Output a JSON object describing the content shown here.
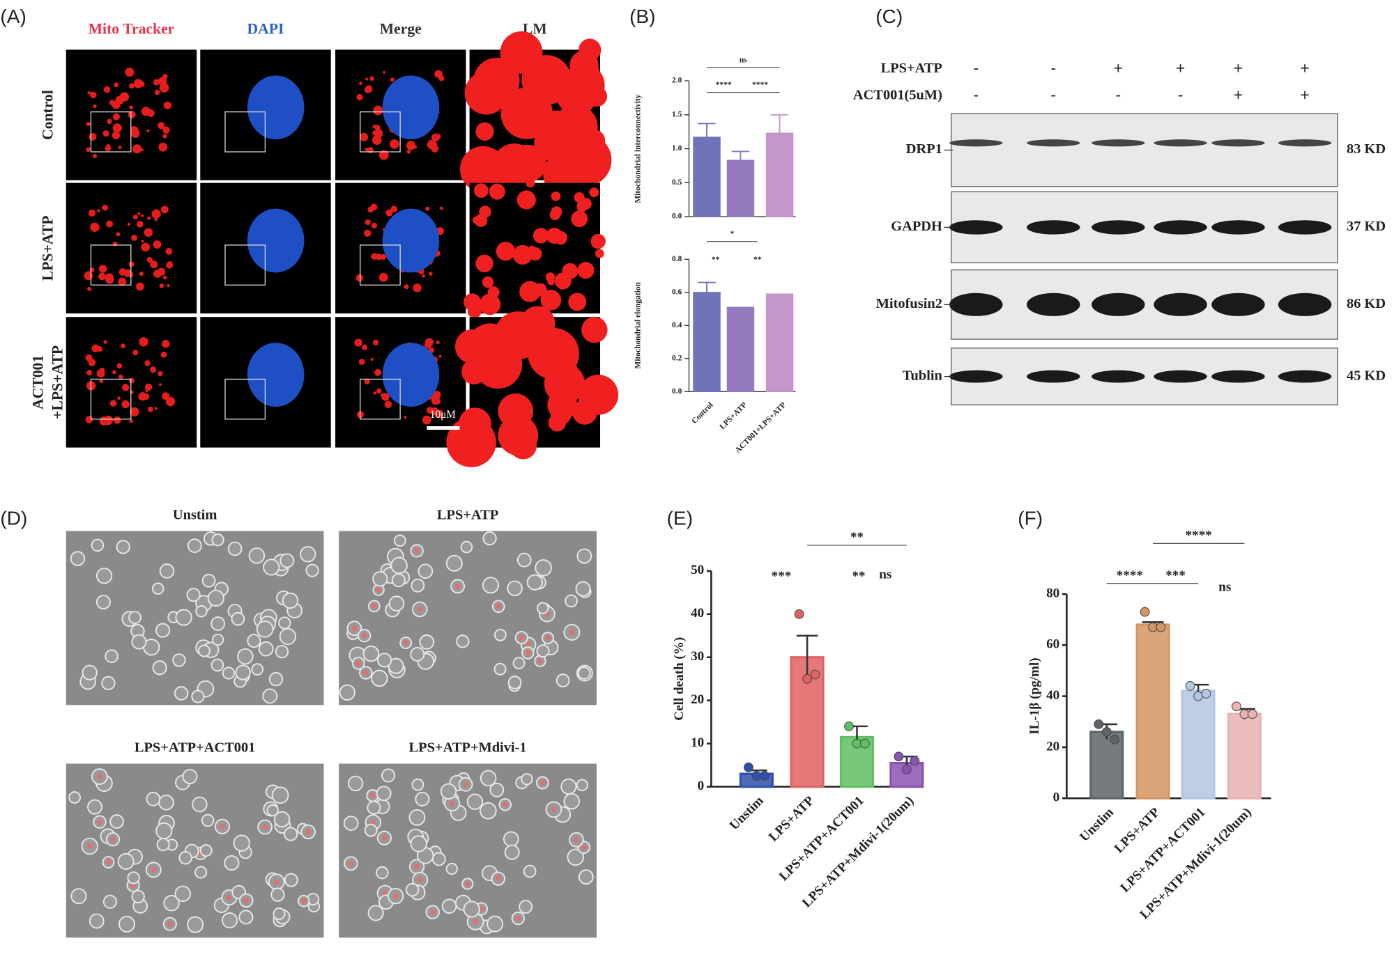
{
  "panel_labels": [
    "(A)",
    "(B)",
    "(C)",
    "(D)",
    "(E)",
    "(F)"
  ],
  "panel_a": {
    "columns": [
      "Mito Tracker",
      "DAPI",
      "Merge",
      "LM"
    ],
    "rows": [
      [
        "Control"
      ],
      [
        "LPS+ATP"
      ],
      [
        "ACT001",
        "+LPS+ATP"
      ]
    ],
    "scale_bar": "10μM"
  },
  "panel_c": {
    "treatments": [
      {
        "label": "LPS+ATP",
        "signs": [
          "-",
          "-",
          "+",
          "+",
          "+",
          "+"
        ]
      },
      {
        "label": "ACT001(5uM)",
        "signs": [
          "-",
          "-",
          "-",
          "-",
          "+",
          "+"
        ]
      }
    ],
    "blots": [
      {
        "protein": "DRP1",
        "size": "83 KD"
      },
      {
        "protein": "GAPDH",
        "size": "37 KD"
      },
      {
        "protein": "Mitofusin2",
        "size": "86 KD"
      },
      {
        "protein": "Tublin",
        "size": "45 KD"
      }
    ]
  },
  "panel_d": {
    "titles": [
      "Unstim",
      "LPS+ATP",
      "LPS+ATP+ACT001",
      "LPS+ATP+Mdivi-1"
    ]
  },
  "chart_data": [
    {
      "type": "bar",
      "ylabel": "Mitochondrial interconnectivity",
      "values": [
        1.17,
        0.83,
        1.23
      ],
      "errors": [
        0.2,
        0.13,
        0.27
      ],
      "colors": [
        "#6f73ba",
        "#9479bd",
        "#c595cb"
      ],
      "ylim": [
        0,
        2.0
      ],
      "yticks": [
        {
          "value": 0,
          "label": "0.0"
        },
        {
          "value": 0.5,
          "label": "0.5"
        },
        {
          "value": 1.0,
          "label": "1.0"
        },
        {
          "value": 1.5,
          "label": "1.5"
        },
        {
          "value": 2.0,
          "label": "2.0"
        }
      ],
      "annotations": [
        "ns",
        "****",
        "****"
      ]
    },
    {
      "type": "bar",
      "ylabel": "Mitochondrial elongation",
      "categories": [
        "Control",
        "LPS+ATP",
        "ACT001+LPS+ATP"
      ],
      "values": [
        0.6,
        0.51,
        0.59
      ],
      "errors": [
        0.06,
        null,
        null
      ],
      "colors": [
        "#6f73ba",
        "#9479bd",
        "#c595cb"
      ],
      "ylim": [
        0,
        0.8
      ],
      "yticks": [
        {
          "value": 0,
          "label": "0.0"
        },
        {
          "value": 0.2,
          "label": "0.2"
        },
        {
          "value": 0.4,
          "label": "0.4"
        },
        {
          "value": 0.6,
          "label": "0.6"
        },
        {
          "value": 0.8,
          "label": "0.8"
        }
      ],
      "annotations": [
        "*",
        "**",
        "**"
      ]
    },
    {
      "type": "bar",
      "ylabel": "Cell death (%)",
      "categories": [
        "Unstim",
        "LPS+ATP",
        "LPS+ATP+ACT001",
        "LPS+ATP+Mdivi-1(20um)"
      ],
      "values": [
        3,
        30,
        11.5,
        5.5
      ],
      "errors": [
        0.8,
        5,
        2.5,
        1.5
      ],
      "points": [
        [
          4.5,
          2.5,
          2.5
        ],
        [
          40,
          25,
          26
        ],
        [
          14,
          10,
          10
        ],
        [
          7,
          4,
          6
        ]
      ],
      "colors": [
        "#2f50aa",
        "#e06262",
        "#5fc062",
        "#8b52b2"
      ],
      "ylim": [
        0,
        50
      ],
      "yticks": [
        0,
        10,
        20,
        30,
        40,
        50
      ],
      "annotations": [
        "***",
        "**",
        "ns",
        "**"
      ]
    },
    {
      "type": "bar",
      "ylabel": "IL-1β (pg/ml)",
      "categories": [
        "Unstim",
        "LPS+ATP",
        "LPS+ATP+ACT001",
        "LPS+ATP+Mdivi-1(20um)"
      ],
      "values": [
        26,
        68,
        42,
        33
      ],
      "errors": [
        3,
        1,
        2.5,
        2
      ],
      "points": [
        [
          29,
          26,
          23
        ],
        [
          73,
          67,
          67
        ],
        [
          44,
          40,
          41
        ],
        [
          36,
          33,
          33
        ]
      ],
      "colors": [
        "#5f6367",
        "#d49564",
        "#b3c6e2",
        "#e9b2b2"
      ],
      "ylim": [
        0,
        80
      ],
      "yticks": [
        0,
        20,
        40,
        60,
        80
      ],
      "annotations": [
        "****",
        "***",
        "ns",
        "****"
      ]
    }
  ]
}
